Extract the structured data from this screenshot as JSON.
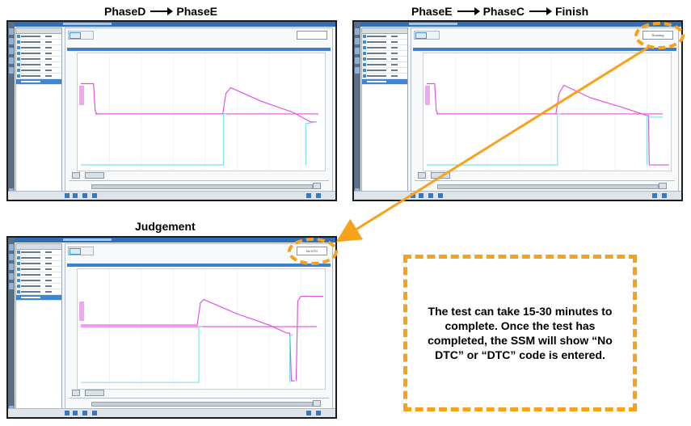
{
  "captions": {
    "top_left": {
      "from": "PhaseD",
      "to": "PhaseE"
    },
    "top_right": {
      "from": "PhaseE",
      "mid": "PhaseC",
      "to": "Finish"
    },
    "bottom_left": "Judgement"
  },
  "screenshots": {
    "top_left": {
      "status": ""
    },
    "top_right": {
      "status": "Running"
    },
    "bottom_left": {
      "status": "No DTC"
    }
  },
  "callout": {
    "text": "The test can take 15-30 minutes to complete. Once the test has completed, the SSM will show “No DTC” or “DTC” code is entered."
  },
  "colors": {
    "highlight_orange": "#f7a21a",
    "trace_magenta": "#e050e0",
    "trace_cyan": "#6ee0e6"
  }
}
